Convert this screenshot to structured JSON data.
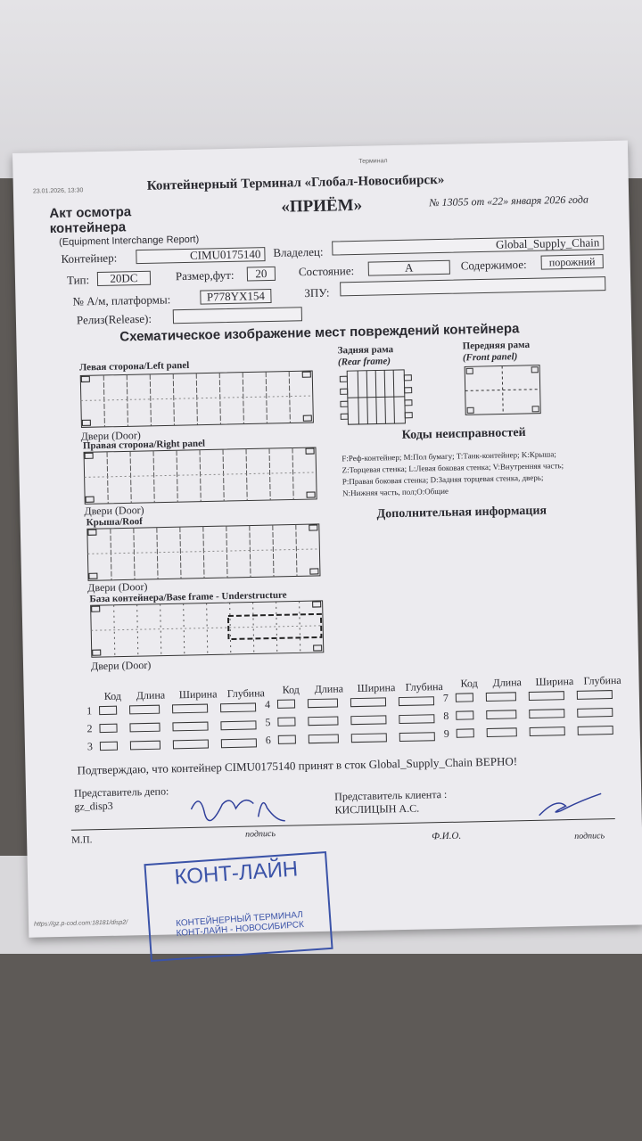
{
  "header": {
    "printed_at": "23.01.2026, 13:30",
    "top_label": "Терминал",
    "terminal": "Контейнерный Терминал «Глобал-Новосибирск»",
    "doc_no": "№ 13055 от «22» января 2026 года",
    "type": "«ПРИЁМ»",
    "act_title_1": "Акт осмотра",
    "act_title_2": "контейнера",
    "act_subtitle": "(Equipment Interchange Report)"
  },
  "fields": {
    "container_label": "Контейнер:",
    "container": "CIMU0175140",
    "owner_label": "Владелец:",
    "owner": "Global_Supply_Chain",
    "type_label": "Тип:",
    "type": "20DC",
    "size_label": "Размер,фут:",
    "size": "20",
    "state_label": "Состояние:",
    "state": "A",
    "contents_label": "Содержимое:",
    "contents": "порожний",
    "vehicle_label": "№ А/м, платформы:",
    "vehicle": "P778YX154",
    "seal_label": "ЗПУ:",
    "seal": "",
    "release_label": "Релиз(Release):",
    "release": ""
  },
  "schema": {
    "title": "Схематическое изображение мест повреждений контейнера",
    "left_panel": "Левая сторона/Left panel",
    "right_panel": "Правая сторона/Right panel",
    "roof": "Крыша/Roof",
    "base": "База контейнера/Base frame - Understructure",
    "door": "Двери (Door)",
    "rear_1": "Задняя рама",
    "rear_2": "(Rear frame)",
    "front_1": "Передняя рама",
    "front_2": "(Front panel)"
  },
  "codes": {
    "title": "Коды неисправностей",
    "lines": [
      "F:Реф-контейнер; M:Пол бумагу; T:Танк-контейнер; K:Крыша;",
      "Z:Торцевая стенка; L:Левая боковая стенка; V:Внутренняя часть;",
      "P:Правая боковая стенка; D:Задняя торцевая стенка, дверь;",
      "N:Нижняя часть, пол;O:Общие"
    ]
  },
  "extra_info_title": "Дополнительная информация",
  "damage_table": {
    "headers": [
      "Код",
      "Длина",
      "Ширина",
      "Глубина"
    ],
    "rows": [
      "1",
      "2",
      "3",
      "4",
      "5",
      "6",
      "7",
      "8",
      "9"
    ]
  },
  "confirm": "Подтверждаю, что контейнер  CIMU0175140 принят в сток  Global_Supply_Chain ВЕРНО!",
  "depot": {
    "label": "Представитель депо:",
    "name": "gz_disp3",
    "mp": "М.П.",
    "sign": "подпись"
  },
  "client": {
    "label": "Представитель клиента :",
    "name": "КИСЛИЦЫН А.С.",
    "fio": "Ф.И.О.",
    "sign": "подпись"
  },
  "stamp": {
    "name": "КОНТ-ЛАЙН",
    "line1": "КОНТЕЙНЕРНЫЙ ТЕРМИНАЛ",
    "line2": "КОНТ-ЛАЙН - НОВОСИБИРСК",
    "stamp_color": "#3b53a8"
  },
  "footer": {
    "url": "https://gz.p-cod.com:18181/disp2/"
  }
}
